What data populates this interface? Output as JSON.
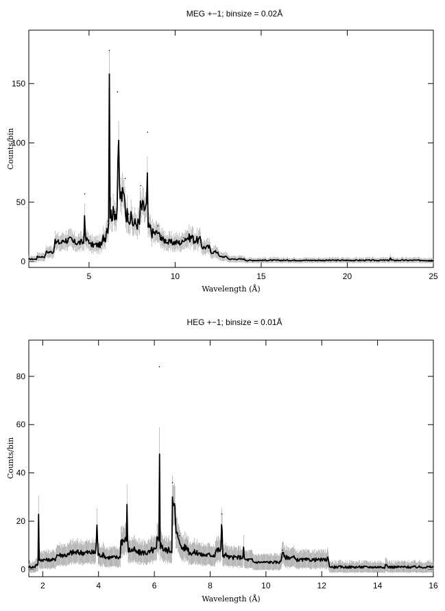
{
  "chart_data": [
    {
      "type": "line",
      "title": "MEG +−1; binsize = 0.02Å",
      "xlabel": "Wavelength (Å)",
      "ylabel": "Counts/bin",
      "xlim": [
        1.5,
        25
      ],
      "ylim": [
        -5,
        195
      ],
      "xticks": [
        5,
        10,
        15,
        20,
        25
      ],
      "yticks": [
        0,
        50,
        100,
        150
      ],
      "grid": false,
      "series": [
        {
          "name": "",
          "x": [
            1.5,
            2.0,
            2.5,
            3.0,
            3.5,
            4.0,
            4.5,
            4.75,
            5.0,
            5.5,
            5.8,
            6.0,
            6.1,
            6.18,
            6.3,
            6.5,
            6.65,
            6.75,
            6.9,
            7.1,
            7.3,
            7.5,
            7.7,
            8.0,
            8.2,
            8.4,
            8.6,
            8.8,
            9.0,
            9.2,
            9.5,
            10.0,
            10.5,
            11.0,
            11.5,
            12.0,
            12.5,
            13.0,
            14.0,
            15.0,
            16.0,
            17.0,
            18.0,
            20.0,
            22.0,
            22.5,
            23.0,
            25.0
          ],
          "y": [
            2,
            4,
            8,
            16,
            18,
            18,
            16,
            57,
            18,
            14,
            20,
            28,
            34,
            178,
            40,
            42,
            143,
            88,
            55,
            70,
            40,
            36,
            32,
            64,
            45,
            109,
            28,
            24,
            30,
            22,
            18,
            16,
            20,
            22,
            18,
            12,
            8,
            4,
            2,
            1,
            1,
            1,
            1,
            1,
            1,
            3,
            1,
            1
          ]
        }
      ]
    },
    {
      "type": "line",
      "title": "HEG +−1; binsize = 0.01Å",
      "xlabel": "Wavelength (Å)",
      "ylabel": "Counts/bin",
      "xlim": [
        1.5,
        16
      ],
      "ylim": [
        -3,
        95
      ],
      "xticks": [
        2,
        4,
        6,
        8,
        10,
        12,
        14,
        16
      ],
      "yticks": [
        0,
        20,
        40,
        60,
        80
      ],
      "grid": false,
      "series": [
        {
          "name": "",
          "x": [
            1.5,
            1.75,
            1.85,
            2.0,
            2.5,
            3.0,
            3.5,
            3.95,
            4.2,
            4.6,
            4.8,
            5.02,
            5.3,
            5.6,
            5.9,
            6.1,
            6.18,
            6.3,
            6.5,
            6.65,
            6.75,
            6.9,
            7.2,
            7.6,
            8.0,
            8.2,
            8.42,
            8.6,
            9.0,
            9.2,
            9.5,
            10.0,
            10.6,
            11.0,
            11.5,
            12.0,
            12.2,
            13.0,
            14.0,
            14.3,
            15.0,
            16.0
          ],
          "y": [
            1,
            2,
            21,
            4,
            6,
            7,
            7,
            18,
            6,
            5,
            12,
            24,
            8,
            7,
            8,
            12,
            84,
            10,
            8,
            36,
            25,
            14,
            9,
            7,
            6,
            8,
            23,
            6,
            5,
            8,
            4,
            3,
            8,
            5,
            4,
            4,
            5,
            1,
            1,
            2,
            1,
            1
          ]
        }
      ]
    }
  ]
}
